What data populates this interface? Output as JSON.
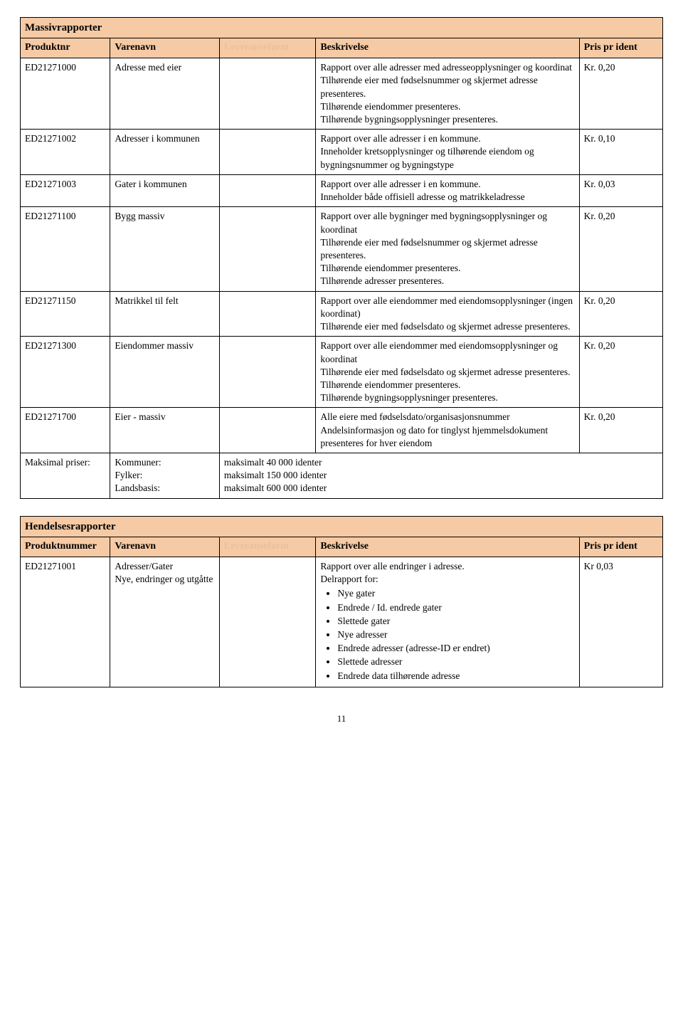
{
  "table1": {
    "title": "Massivrapporter",
    "headers": {
      "prod": "Produktnr",
      "name": "Varenavn",
      "form": "Leveranseform",
      "desc": "Beskrivelse",
      "price": "Pris pr ident"
    },
    "rows": [
      {
        "prod": "ED21271000",
        "name": "Adresse med eier",
        "desc": "Rapport over alle adresser med adresseopplysninger og koordinat\nTilhørende eier med fødselsnummer og skjermet adresse presenteres.\nTilhørende eiendommer presenteres.\nTilhørende bygningsopplysninger presenteres.",
        "price": "Kr. 0,20"
      },
      {
        "prod": "ED21271002",
        "name": "Adresser i kommunen",
        "desc": "Rapport over alle adresser i en kommune.\nInneholder kretsopplysninger og tilhørende eiendom og bygningsnummer og bygningstype",
        "price": "Kr. 0,10"
      },
      {
        "prod": "ED21271003",
        "name": "Gater i kommunen",
        "desc": "Rapport over alle adresser i en kommune.\nInneholder både offisiell adresse og matrikkeladresse",
        "price": "Kr. 0,03"
      },
      {
        "prod": "ED21271100",
        "name": "Bygg massiv",
        "desc": "Rapport over alle bygninger med bygningsopplysninger og koordinat\nTilhørende eier med fødselsnummer og skjermet adresse presenteres.\nTilhørende eiendommer presenteres.\nTilhørende adresser  presenteres.",
        "price": "Kr. 0,20"
      },
      {
        "prod": "ED21271150",
        "name": "Matrikkel til felt",
        "desc": "Rapport over alle eiendommer med eiendomsopplysninger (ingen koordinat)\nTilhørende eier med fødselsdato og skjermet adresse presenteres.",
        "price": "Kr. 0,20"
      },
      {
        "prod": "ED21271300",
        "name": "Eiendommer massiv",
        "desc": "Rapport over alle eiendommer  med eiendomsopplysninger  og koordinat\nTilhørende eier med fødselsdato og skjermet adresse presenteres.\nTilhørende eiendommer presenteres.\nTilhørende bygningsopplysninger presenteres.",
        "price": "Kr. 0,20"
      },
      {
        "prod": "ED21271700",
        "name": "Eier - massiv",
        "desc": "Alle eiere med fødselsdato/organisasjonsnummer\nAndelsinformasjon og dato for tinglyst hjemmelsdokument presenteres for hver eiendom",
        "price": "Kr. 0,20"
      }
    ],
    "footer": {
      "label": "Maksimal priser:",
      "lines_col2": "Kommuner:\nFylker:\nLandsbasis:",
      "lines_col3": "maksimalt 40 000 identer\nmaksimalt 150 000 identer\nmaksimalt 600 000 identer"
    }
  },
  "table2": {
    "title": "Hendelsesrapporter",
    "headers": {
      "prod": "Produktnummer",
      "name": "Varenavn",
      "form": "Leveranseform",
      "desc": "Beskrivelse",
      "price": "Pris pr ident"
    },
    "row": {
      "prod": "ED21271001",
      "name": "Adresser/Gater\nNye, endringer og utgåtte",
      "desc_intro": "Rapport over alle endringer i adresse.\nDelrapport for:",
      "bullets": [
        "Nye gater",
        "Endrede / Id. endrede gater",
        "Slettede gater",
        "Nye adresser",
        "Endrede adresser (adresse-ID er endret)",
        "Slettede adresser",
        "Endrede data tilhørende adresse"
      ],
      "price": "Kr 0,03"
    }
  },
  "page_number": "11",
  "colors": {
    "header_bg": "#f6caa4",
    "faded_text": "#e9c09a",
    "border": "#000000",
    "text": "#000000",
    "background": "#ffffff"
  }
}
